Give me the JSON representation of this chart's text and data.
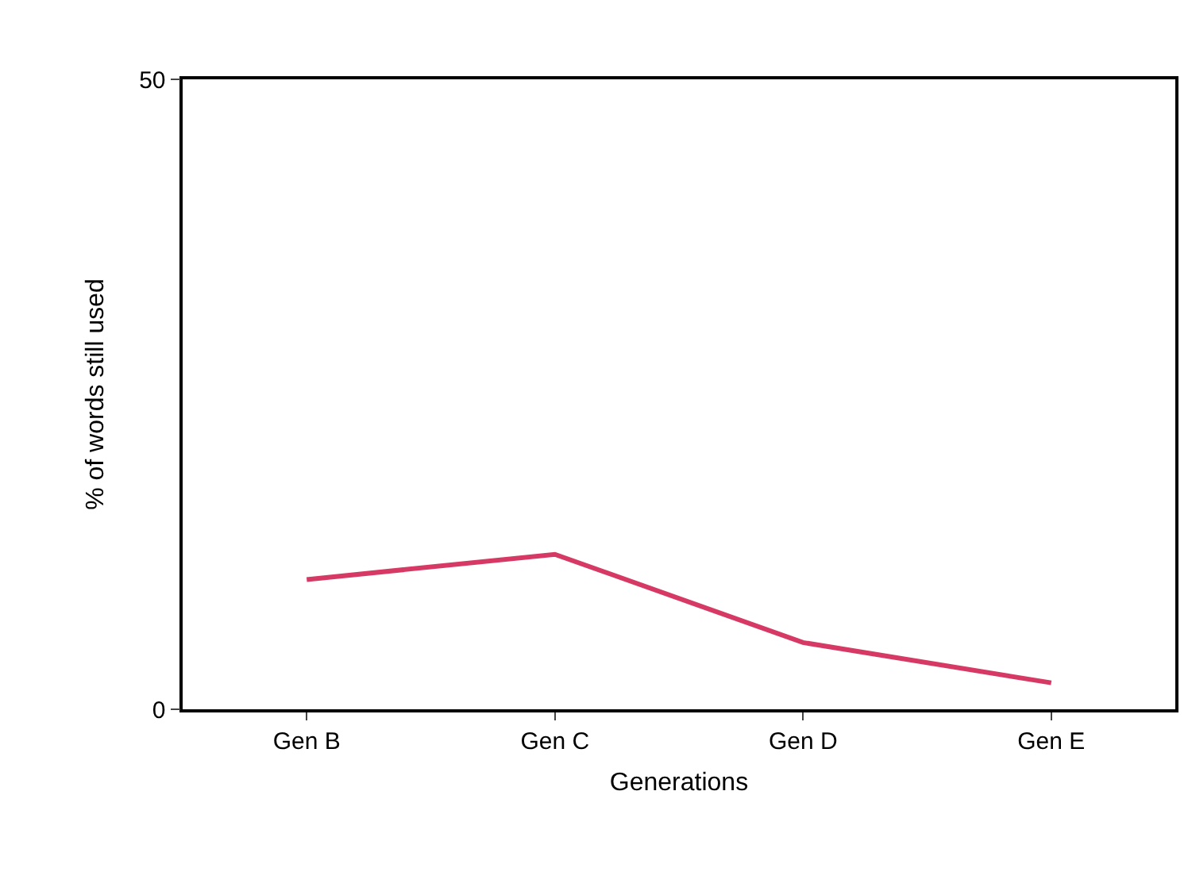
{
  "chart_data": {
    "type": "line",
    "xlabel": "Generations",
    "ylabel": "% of words still used",
    "categories": [
      "Gen B",
      "Gen C",
      "Gen D",
      "Gen E"
    ],
    "series": [
      {
        "color": "#d63a64",
        "values": [
          10.3,
          12.3,
          5.3,
          2.1
        ]
      }
    ],
    "ylim": [
      0,
      50
    ],
    "yticks": [
      0,
      50
    ],
    "grid": false,
    "marker": "none",
    "line_style": "solid"
  }
}
